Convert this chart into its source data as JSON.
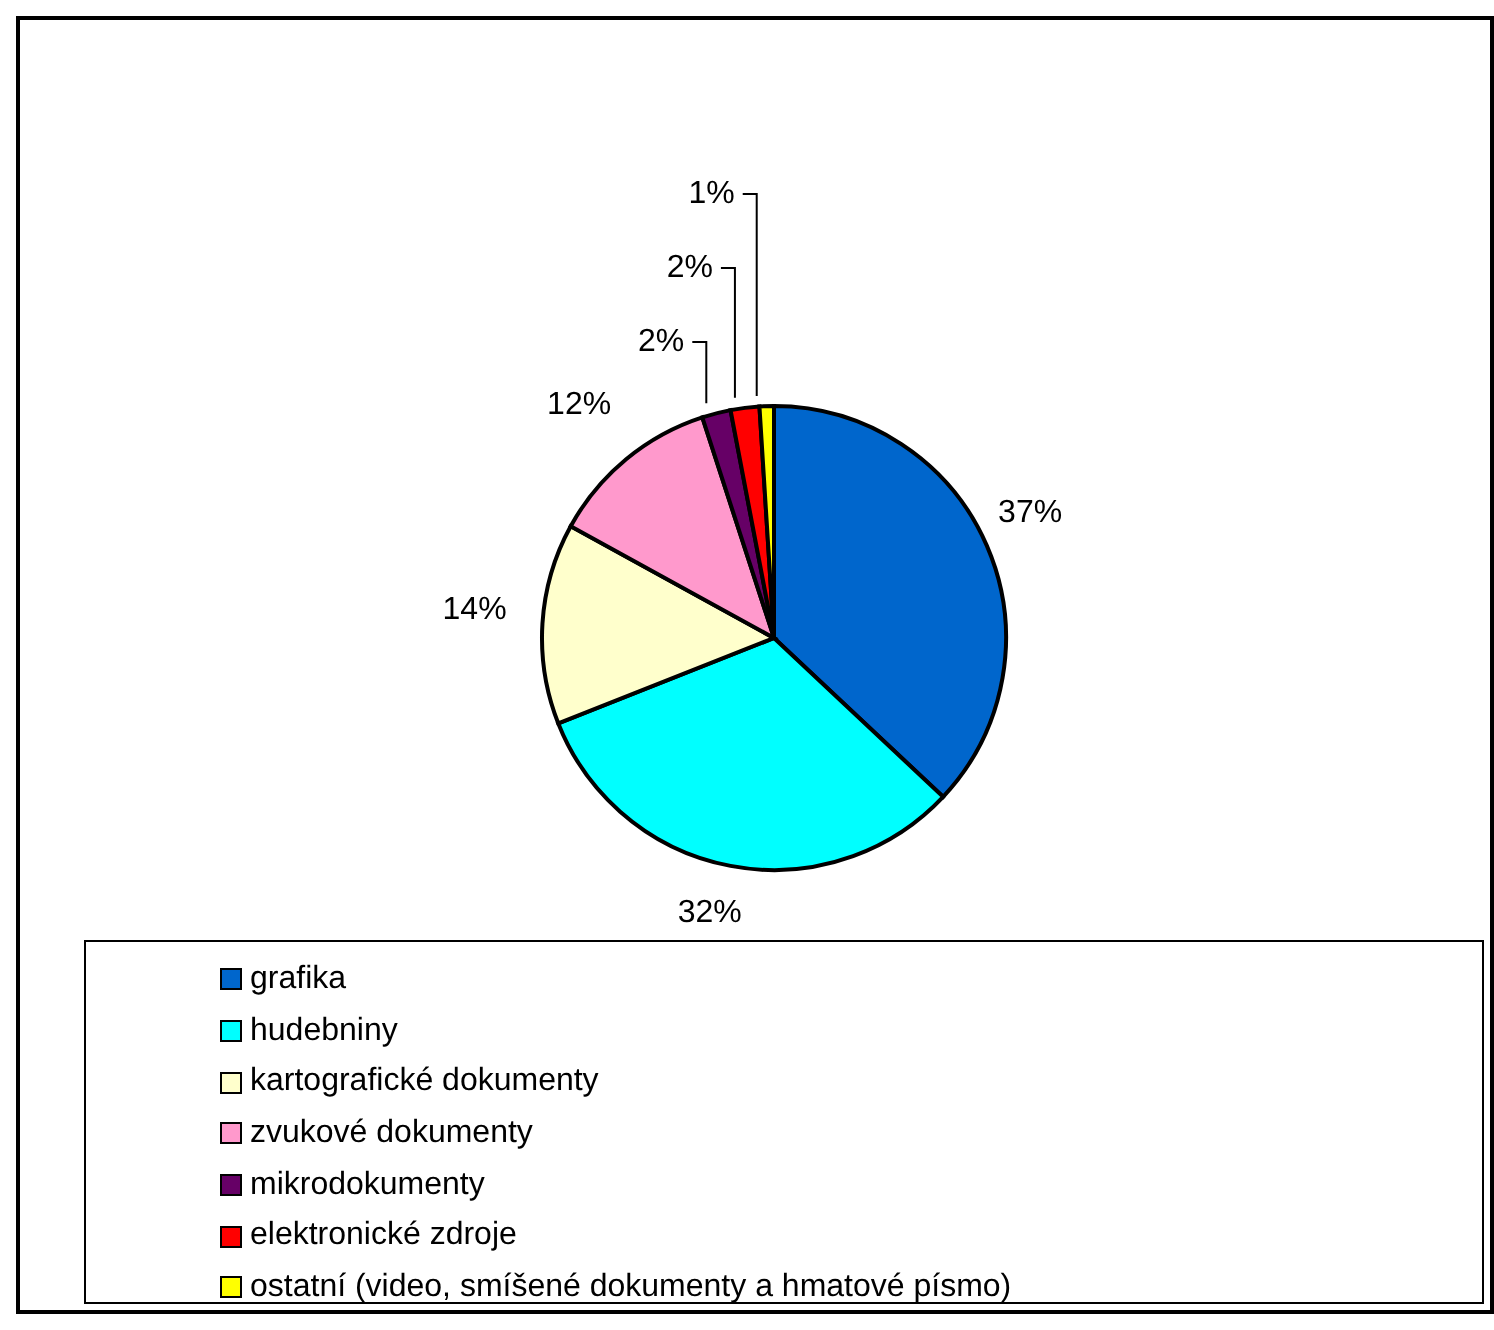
{
  "chart_data": {
    "type": "pie",
    "categories": [
      "grafika",
      "hudebniny",
      "kartografické dokumenty",
      "zvukové dokumenty",
      "mikrodokumenty",
      "elektronické zdroje",
      "ostatní (video, smíšené dokumenty a hmatové písmo)"
    ],
    "values": [
      37,
      32,
      14,
      12,
      2,
      2,
      1
    ],
    "colors": [
      "#0066cc",
      "#00ffff",
      "#ffffcc",
      "#ff99cc",
      "#660066",
      "#ff0000",
      "#ffff00"
    ],
    "value_labels": [
      "37%",
      "32%",
      "14%",
      "12%",
      "2%",
      "2%",
      "1%"
    ],
    "legend": "bottom"
  }
}
